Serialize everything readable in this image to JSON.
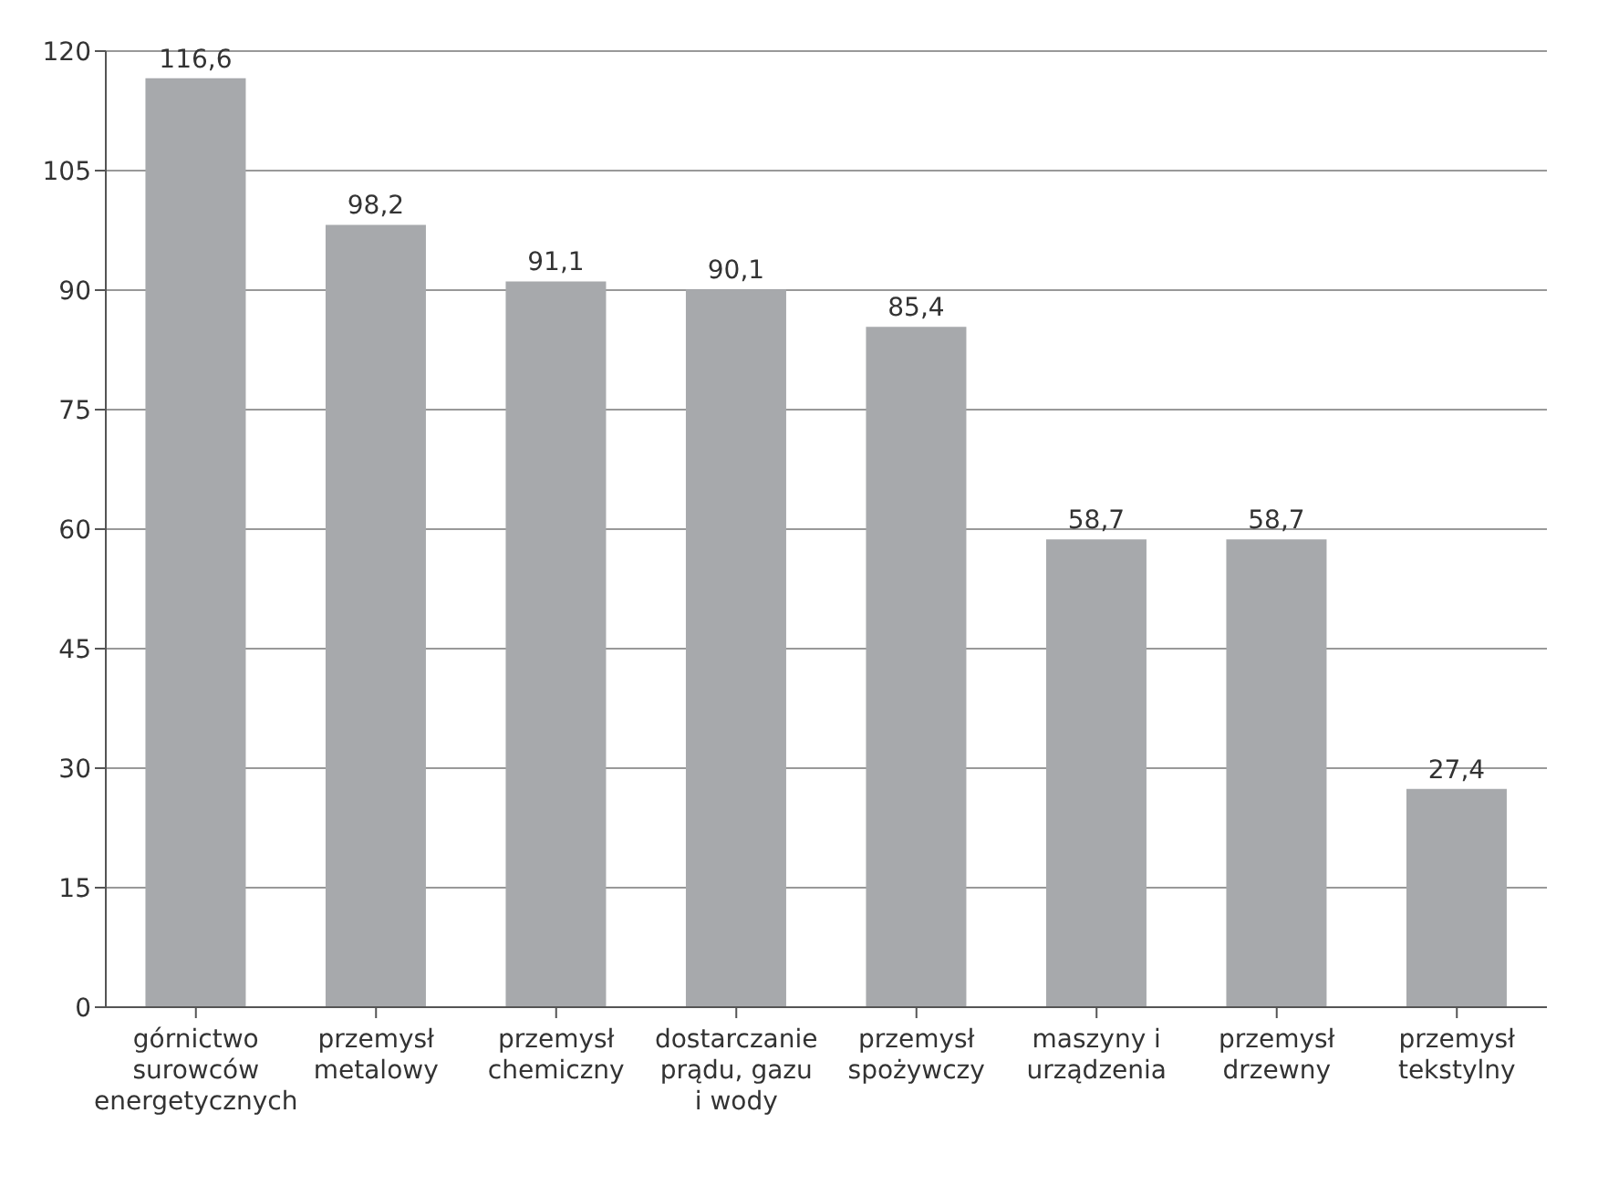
{
  "chart_data": {
    "type": "bar",
    "categories": [
      "górnictwo surowców energetycznych",
      "przemysł metalowy",
      "przemysł chemiczny",
      "dostarczanie prądu, gazu i wody",
      "przemysł spożywczy",
      "maszyny i urządzenia",
      "przemysł drzewny",
      "przemysł tekstylny"
    ],
    "values": [
      116.6,
      98.2,
      91.1,
      90.1,
      85.4,
      58.7,
      58.7,
      27.4
    ],
    "value_labels": [
      "116,6",
      "98,2",
      "91,1",
      "90,1",
      "85,4",
      "58,7",
      "58,7",
      "27,4"
    ],
    "color": "#a7a9ac",
    "ylim": [
      0,
      120
    ],
    "yticks": [
      0,
      15,
      30,
      45,
      60,
      75,
      90,
      105,
      120
    ],
    "grid": "y"
  }
}
